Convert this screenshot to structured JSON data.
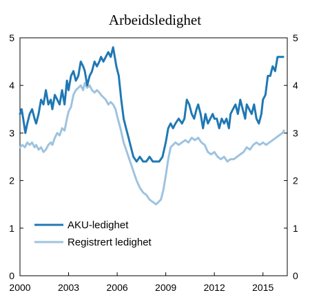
{
  "chart_data": {
    "type": "line",
    "title": "Arbeidsledighet",
    "xlabel": "",
    "ylabel": "",
    "xlim": [
      2000,
      2016.5
    ],
    "ylim": [
      0,
      5
    ],
    "x_ticks": [
      "2000",
      "2003",
      "2006",
      "2009",
      "2012",
      "2015"
    ],
    "x_tick_values": [
      2000,
      2003,
      2006,
      2009,
      2012,
      2015
    ],
    "y_ticks": [
      "0",
      "1",
      "2",
      "3",
      "4",
      "5"
    ],
    "y_tick_values": [
      0,
      1,
      2,
      3,
      4,
      5
    ],
    "grid": false,
    "legend_position": "bottom-left",
    "series": [
      {
        "name": "AKU-ledighet",
        "color": "#1f78b4",
        "x": [
          2000.0,
          2000.1,
          2000.2,
          2000.33,
          2000.45,
          2000.6,
          2000.75,
          2000.9,
          2001.0,
          2001.15,
          2001.3,
          2001.45,
          2001.6,
          2001.75,
          2001.9,
          2002.0,
          2002.15,
          2002.3,
          2002.45,
          2002.6,
          2002.75,
          2002.9,
          2003.0,
          2003.15,
          2003.3,
          2003.45,
          2003.6,
          2003.75,
          2003.9,
          2004.0,
          2004.15,
          2004.3,
          2004.45,
          2004.6,
          2004.75,
          2004.9,
          2005.0,
          2005.15,
          2005.3,
          2005.45,
          2005.6,
          2005.75,
          2005.85,
          2005.95,
          2006.1,
          2006.25,
          2006.4,
          2006.55,
          2006.7,
          2006.85,
          2007.0,
          2007.2,
          2007.4,
          2007.6,
          2007.8,
          2008.0,
          2008.2,
          2008.4,
          2008.6,
          2008.8,
          2009.0,
          2009.15,
          2009.3,
          2009.45,
          2009.6,
          2009.8,
          2010.0,
          2010.15,
          2010.3,
          2010.45,
          2010.6,
          2010.75,
          2010.9,
          2011.0,
          2011.15,
          2011.3,
          2011.45,
          2011.6,
          2011.75,
          2011.9,
          2012.0,
          2012.15,
          2012.3,
          2012.45,
          2012.6,
          2012.75,
          2012.9,
          2013.0,
          2013.15,
          2013.3,
          2013.45,
          2013.6,
          2013.75,
          2013.9,
          2014.0,
          2014.15,
          2014.3,
          2014.45,
          2014.6,
          2014.75,
          2014.9,
          2015.0,
          2015.15,
          2015.3,
          2015.45,
          2015.6,
          2015.75,
          2015.9,
          2016.0,
          2016.1,
          2016.25
        ],
        "values": [
          3.4,
          3.5,
          3.3,
          3.0,
          3.2,
          3.4,
          3.5,
          3.3,
          3.2,
          3.4,
          3.7,
          3.6,
          3.9,
          3.6,
          3.7,
          3.5,
          3.8,
          3.7,
          3.6,
          3.9,
          3.6,
          4.1,
          3.9,
          4.2,
          4.3,
          4.1,
          4.2,
          4.5,
          4.4,
          4.3,
          4.0,
          4.2,
          4.3,
          4.5,
          4.4,
          4.5,
          4.6,
          4.5,
          4.6,
          4.7,
          4.6,
          4.8,
          4.6,
          4.4,
          4.2,
          3.7,
          3.3,
          3.1,
          2.9,
          2.7,
          2.5,
          2.4,
          2.5,
          2.4,
          2.4,
          2.5,
          2.4,
          2.4,
          2.4,
          2.5,
          2.8,
          3.1,
          3.2,
          3.1,
          3.2,
          3.3,
          3.2,
          3.3,
          3.7,
          3.6,
          3.4,
          3.3,
          3.5,
          3.6,
          3.4,
          3.1,
          3.4,
          3.2,
          3.3,
          3.4,
          3.3,
          3.3,
          3.1,
          3.3,
          3.2,
          3.3,
          3.1,
          3.4,
          3.5,
          3.6,
          3.4,
          3.7,
          3.5,
          3.3,
          3.6,
          3.5,
          3.4,
          3.6,
          3.3,
          3.2,
          3.4,
          3.7,
          3.8,
          4.2,
          4.2,
          4.4,
          4.3,
          4.6,
          4.6,
          4.6,
          4.6
        ]
      },
      {
        "name": "Registrert ledighet",
        "color": "#9ec3df",
        "x": [
          2000.0,
          2000.15,
          2000.3,
          2000.45,
          2000.6,
          2000.75,
          2000.9,
          2001.0,
          2001.15,
          2001.3,
          2001.45,
          2001.6,
          2001.75,
          2001.9,
          2002.0,
          2002.15,
          2002.3,
          2002.45,
          2002.6,
          2002.75,
          2002.9,
          2003.0,
          2003.15,
          2003.3,
          2003.45,
          2003.6,
          2003.75,
          2003.9,
          2004.0,
          2004.15,
          2004.3,
          2004.45,
          2004.6,
          2004.75,
          2004.9,
          2005.0,
          2005.15,
          2005.3,
          2005.45,
          2005.6,
          2005.75,
          2005.9,
          2006.0,
          2006.2,
          2006.4,
          2006.6,
          2006.8,
          2007.0,
          2007.2,
          2007.4,
          2007.6,
          2007.8,
          2008.0,
          2008.2,
          2008.4,
          2008.55,
          2008.7,
          2008.85,
          2009.0,
          2009.15,
          2009.3,
          2009.45,
          2009.6,
          2009.8,
          2010.0,
          2010.2,
          2010.4,
          2010.6,
          2010.8,
          2011.0,
          2011.2,
          2011.4,
          2011.6,
          2011.8,
          2012.0,
          2012.2,
          2012.4,
          2012.6,
          2012.8,
          2013.0,
          2013.2,
          2013.4,
          2013.6,
          2013.8,
          2014.0,
          2014.2,
          2014.4,
          2014.6,
          2014.8,
          2015.0,
          2015.2,
          2015.4,
          2015.6,
          2015.8,
          2016.0,
          2016.2,
          2016.3
        ],
        "values": [
          2.7,
          2.75,
          2.7,
          2.8,
          2.75,
          2.8,
          2.7,
          2.75,
          2.65,
          2.7,
          2.6,
          2.65,
          2.75,
          2.8,
          2.75,
          2.9,
          3.0,
          2.95,
          3.1,
          3.05,
          3.3,
          3.45,
          3.55,
          3.8,
          3.9,
          3.95,
          4.0,
          3.9,
          4.05,
          3.95,
          4.0,
          3.9,
          3.85,
          3.9,
          3.85,
          3.8,
          3.75,
          3.7,
          3.6,
          3.65,
          3.6,
          3.5,
          3.35,
          3.1,
          2.8,
          2.6,
          2.4,
          2.2,
          2.0,
          1.85,
          1.75,
          1.7,
          1.6,
          1.55,
          1.5,
          1.55,
          1.6,
          1.8,
          2.1,
          2.45,
          2.7,
          2.75,
          2.8,
          2.75,
          2.8,
          2.85,
          2.8,
          2.9,
          2.85,
          2.9,
          2.8,
          2.75,
          2.6,
          2.55,
          2.6,
          2.5,
          2.45,
          2.5,
          2.4,
          2.45,
          2.45,
          2.5,
          2.55,
          2.6,
          2.7,
          2.65,
          2.75,
          2.8,
          2.75,
          2.8,
          2.75,
          2.8,
          2.85,
          2.9,
          2.95,
          3.0,
          3.05
        ]
      }
    ]
  }
}
